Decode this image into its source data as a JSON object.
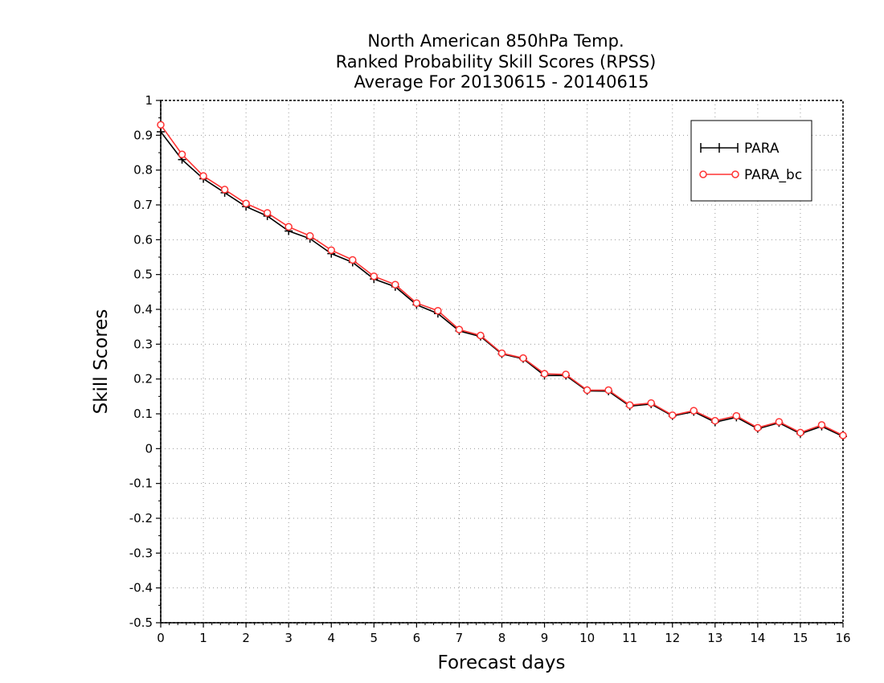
{
  "chart_data": {
    "type": "line",
    "title_lines": [
      "North American 850hPa Temp.",
      "Ranked Probability Skill Scores (RPSS)",
      "Average For 20130615 - 20140615"
    ],
    "xlabel": "Forecast days",
    "ylabel": "Skill Scores",
    "xlim": [
      0,
      16
    ],
    "ylim": [
      -0.5,
      1
    ],
    "x_ticks": [
      0,
      1,
      2,
      3,
      4,
      5,
      6,
      7,
      8,
      9,
      10,
      11,
      12,
      13,
      14,
      15,
      16
    ],
    "x_tick_labels": [
      "0",
      "1",
      "2",
      "3",
      "4",
      "5",
      "6",
      "7",
      "8",
      "9",
      "10",
      "11",
      "12",
      "13",
      "14",
      "15",
      "16"
    ],
    "y_ticks": [
      -0.5,
      -0.4,
      -0.3,
      -0.2,
      -0.1,
      0,
      0.1,
      0.2,
      0.3,
      0.4,
      0.5,
      0.6,
      0.7,
      0.8,
      0.9,
      1
    ],
    "y_tick_labels": [
      "-0.5",
      "-0.4",
      "-0.3",
      "-0.2",
      "-0.1",
      "0",
      "0.1",
      "0.2",
      "0.3",
      "0.4",
      "0.5",
      "0.6",
      "0.7",
      "0.8",
      "0.9",
      "1"
    ],
    "grid": true,
    "legend_position": "top-right",
    "x": [
      0,
      0.5,
      1,
      1.5,
      2,
      2.5,
      3,
      3.5,
      4,
      4.5,
      5,
      5.5,
      6,
      6.5,
      7,
      7.5,
      8,
      8.5,
      9,
      9.5,
      10,
      10.5,
      11,
      11.5,
      12,
      12.5,
      13,
      13.5,
      14,
      14.5,
      15,
      15.5,
      16
    ],
    "series": [
      {
        "name": "PARA",
        "color": "#000000",
        "marker": "plus",
        "values": [
          0.91,
          0.83,
          0.775,
          0.735,
          0.695,
          0.668,
          0.625,
          0.603,
          0.56,
          0.535,
          0.487,
          0.465,
          0.413,
          0.388,
          0.338,
          0.322,
          0.272,
          0.258,
          0.21,
          0.21,
          0.166,
          0.165,
          0.122,
          0.128,
          0.094,
          0.106,
          0.076,
          0.09,
          0.057,
          0.074,
          0.043,
          0.064,
          0.035
        ]
      },
      {
        "name": "PARA_bc",
        "color": "#ff3333",
        "marker": "circle",
        "values": [
          0.93,
          0.845,
          0.783,
          0.744,
          0.704,
          0.677,
          0.637,
          0.611,
          0.57,
          0.542,
          0.495,
          0.471,
          0.418,
          0.396,
          0.342,
          0.325,
          0.274,
          0.26,
          0.215,
          0.213,
          0.168,
          0.168,
          0.125,
          0.131,
          0.096,
          0.109,
          0.08,
          0.094,
          0.06,
          0.077,
          0.046,
          0.068,
          0.038
        ]
      }
    ]
  }
}
